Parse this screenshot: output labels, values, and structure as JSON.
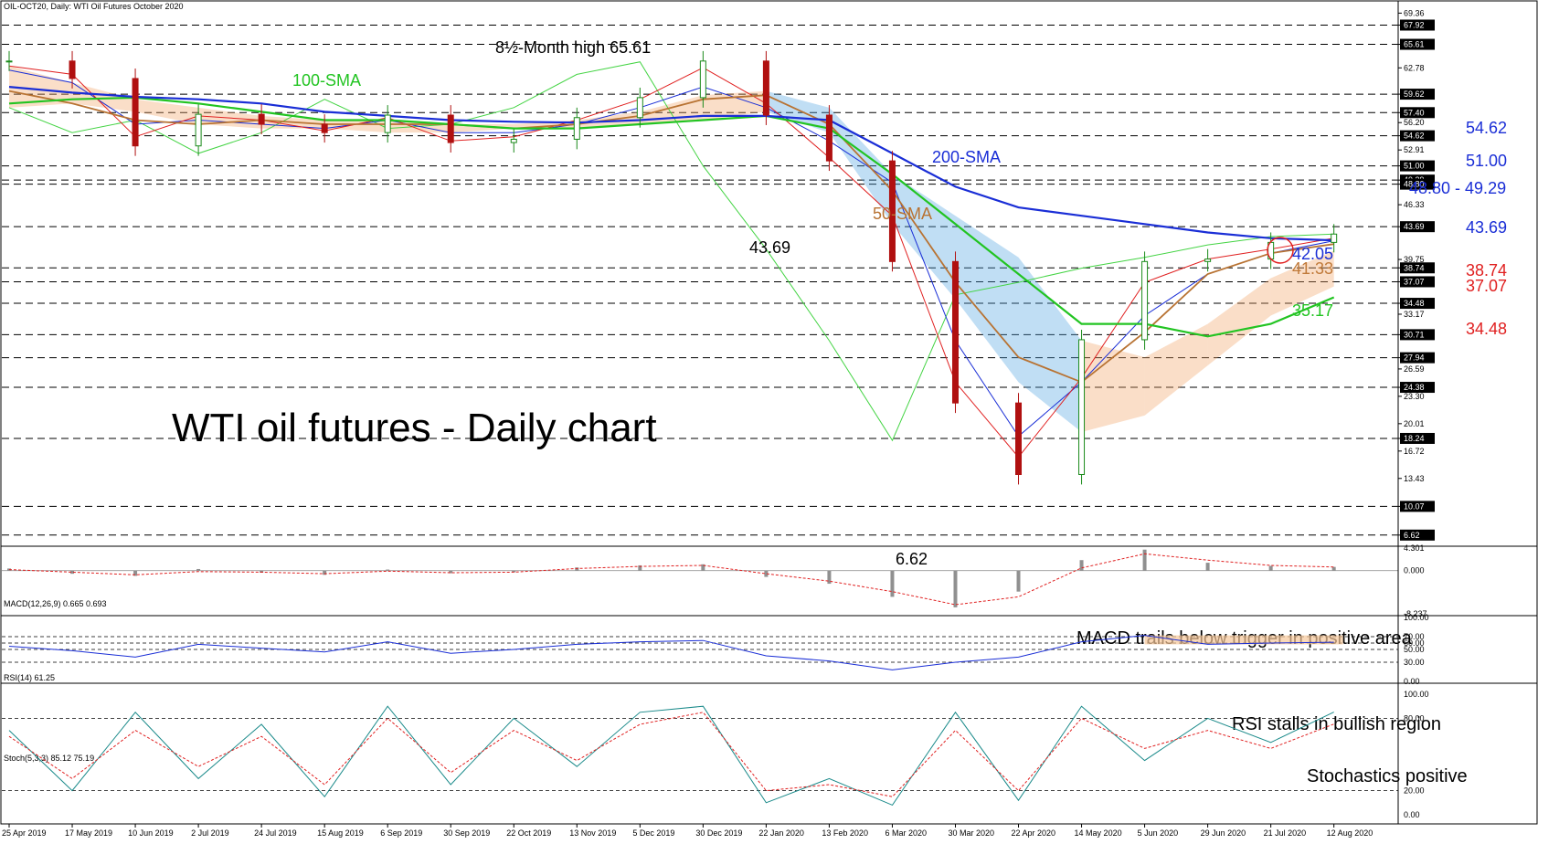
{
  "header": "OIL-OCT20, Daily:  WTI Oil Futures October 2020",
  "chart_data": {
    "type": "line",
    "title": "WTI oil futures - Daily chart",
    "price_axis_labels": [
      "69.36",
      "67.92",
      "65.61",
      "62.78",
      "59.62",
      "57.40",
      "56.20",
      "54.62",
      "52.91",
      "51.00",
      "49.29",
      "48.80",
      "46.33",
      "43.69",
      "39.75",
      "38.74",
      "37.07",
      "34.48",
      "33.17",
      "30.71",
      "27.94",
      "26.59",
      "24.38",
      "23.30",
      "20.01",
      "18.24",
      "16.72",
      "13.43",
      "10.07",
      "6.62"
    ],
    "price_levels": [
      67.92,
      65.61,
      59.62,
      57.4,
      54.62,
      51.0,
      49.29,
      48.8,
      43.69,
      38.74,
      37.07,
      34.48,
      30.71,
      27.94,
      24.38,
      18.24,
      10.07,
      6.62
    ],
    "ylim": [
      5.5,
      69.4
    ],
    "x_labels": [
      "25 Apr 2019",
      "17 May 2019",
      "10 Jun 2019",
      "2 Jul 2019",
      "24 Jul 2019",
      "15 Aug 2019",
      "6 Sep 2019",
      "30 Sep 2019",
      "22 Oct 2019",
      "13 Nov 2019",
      "5 Dec 2019",
      "30 Dec 2019",
      "22 Jan 2020",
      "13 Feb 2020",
      "6 Mar 2020",
      "30 Mar 2020",
      "22 Apr 2020",
      "14 May 2020",
      "5 Jun 2020",
      "29 Jun 2020",
      "21 Jul 2020",
      "12 Aug 2020"
    ],
    "price_series": {
      "x": [
        "25 Apr 2019",
        "17 May 2019",
        "10 Jun 2019",
        "2 Jul 2019",
        "24 Jul 2019",
        "15 Aug 2019",
        "6 Sep 2019",
        "30 Sep 2019",
        "22 Oct 2019",
        "13 Nov 2019",
        "5 Dec 2019",
        "30 Dec 2019",
        "22 Jan 2020",
        "13 Feb 2020",
        "6 Mar 2020",
        "30 Mar 2020",
        "22 Apr 2020",
        "14 May 2020",
        "5 Jun 2020",
        "29 Jun 2020",
        "21 Jul 2020",
        "12 Aug 2020"
      ],
      "close": [
        63.6,
        61.5,
        53.4,
        57.2,
        56.0,
        55.0,
        57.1,
        53.8,
        54.2,
        56.8,
        59.2,
        63.6,
        57.1,
        51.6,
        39.5,
        22.5,
        13.9,
        30.1,
        39.5,
        39.8,
        41.8,
        42.8
      ],
      "tenkan": [
        63.0,
        62.0,
        54.5,
        57.0,
        56.5,
        55.2,
        56.8,
        54.0,
        54.5,
        56.5,
        59.0,
        62.8,
        58.5,
        52.0,
        45.0,
        25.0,
        16.0,
        25.5,
        37.0,
        39.8,
        41.0,
        42.3
      ],
      "kijun": [
        62.5,
        61.0,
        56.0,
        56.5,
        56.0,
        55.5,
        56.5,
        55.0,
        55.0,
        56.0,
        58.0,
        60.5,
        58.0,
        54.0,
        49.0,
        30.0,
        18.5,
        25.0,
        33.0,
        38.0,
        40.5,
        42.0
      ],
      "chikou": [
        58.0,
        55.0,
        56.5,
        52.5,
        55.0,
        59.0,
        55.5,
        56.0,
        58.0,
        62.0,
        63.5,
        51.0,
        41.0,
        30.0,
        18.0,
        35.5,
        37.0,
        38.7,
        40.0,
        41.5,
        42.5,
        42.8
      ],
      "cloud_top": [
        63.0,
        61.0,
        59.0,
        58.0,
        57.0,
        56.5,
        56.5,
        56.0,
        56.0,
        56.5,
        57.5,
        59.5,
        60.0,
        58.0,
        50.0,
        45.0,
        40.0,
        30.0,
        28.0,
        32.0,
        37.5,
        40.8
      ],
      "cloud_bottom": [
        58.0,
        58.5,
        57.5,
        56.0,
        55.5,
        55.5,
        55.0,
        55.0,
        55.5,
        55.5,
        56.0,
        56.5,
        57.5,
        55.0,
        44.0,
        35.0,
        25.0,
        19.0,
        21.0,
        27.0,
        33.0,
        36.5
      ],
      "sma50": [
        60.0,
        58.5,
        56.5,
        56.0,
        56.5,
        56.0,
        56.0,
        56.0,
        55.5,
        56.0,
        57.0,
        59.0,
        59.5,
        56.0,
        48.0,
        37.0,
        28.0,
        25.0,
        31.0,
        38.0,
        40.5,
        41.6
      ],
      "sma100": [
        58.5,
        59.0,
        59.2,
        58.5,
        57.5,
        56.5,
        56.5,
        56.0,
        55.5,
        55.5,
        56.0,
        56.5,
        57.0,
        55.5,
        50.0,
        44.0,
        38.0,
        32.0,
        32.0,
        30.5,
        32.0,
        35.2
      ],
      "sma200": [
        60.5,
        59.8,
        59.3,
        59.0,
        58.5,
        57.5,
        57.0,
        56.5,
        56.3,
        56.2,
        56.5,
        57.0,
        57.0,
        56.5,
        52.5,
        48.5,
        46.0,
        45.0,
        44.0,
        43.0,
        42.3,
        42.05
      ]
    },
    "annotations": {
      "high": "8½-Month high 65.61",
      "low": "6.62",
      "mid_level": "43.69",
      "sma100": "100-SMA",
      "sma200": "200-SMA",
      "sma50": "50-SMA",
      "right_levels": [
        {
          "text": "54.62",
          "color": "#1a2ed6"
        },
        {
          "text": "51.00",
          "color": "#1a2ed6"
        },
        {
          "text": "48.80 - 49.29",
          "color": "#1a2ed6"
        },
        {
          "text": "43.69",
          "color": "#1a2ed6"
        },
        {
          "text": "42.05",
          "color": "#1a2ed6"
        },
        {
          "text": "41.33",
          "color": "#c07a3a"
        },
        {
          "text": "38.74",
          "color": "#e02020"
        },
        {
          "text": "37.07",
          "color": "#e02020"
        },
        {
          "text": "35.17",
          "color": "#22c422"
        },
        {
          "text": "34.48",
          "color": "#e02020"
        }
      ]
    },
    "macd": {
      "header": "MACD(12,26,9) 0.665 0.693",
      "axis_labels": [
        "4.301",
        "0.000",
        "-8.237"
      ],
      "ylim": [
        -8.237,
        4.301
      ],
      "x": [
        "25 Apr 2019",
        "17 May 2019",
        "10 Jun 2019",
        "2 Jul 2019",
        "24 Jul 2019",
        "15 Aug 2019",
        "6 Sep 2019",
        "30 Sep 2019",
        "22 Oct 2019",
        "13 Nov 2019",
        "5 Dec 2019",
        "30 Dec 2019",
        "22 Jan 2020",
        "13 Feb 2020",
        "6 Mar 2020",
        "30 Mar 2020",
        "22 Apr 2020",
        "14 May 2020",
        "5 Jun 2020",
        "29 Jun 2020",
        "21 Jul 2020",
        "12 Aug 2020"
      ],
      "hist": [
        0.4,
        -0.6,
        -1.0,
        0.3,
        -0.4,
        -0.8,
        0.2,
        -0.5,
        -0.3,
        0.6,
        1.0,
        1.2,
        -1.2,
        -2.5,
        -5.0,
        -7.0,
        -4.0,
        2.0,
        4.0,
        1.5,
        0.9,
        0.7
      ],
      "signal": [
        0.2,
        -0.3,
        -0.8,
        -0.2,
        -0.3,
        -0.6,
        -0.1,
        -0.4,
        -0.3,
        0.4,
        0.8,
        1.0,
        -0.6,
        -2.0,
        -4.0,
        -6.5,
        -5.0,
        0.5,
        3.2,
        2.0,
        1.0,
        0.69
      ],
      "annotation": "MACD trails below trigger in positive area"
    },
    "rsi": {
      "header": "RSI(14) 61.25",
      "axis_labels": [
        "100.00",
        "70.00",
        "60.00",
        "50.00",
        "30.00",
        "0.00"
      ],
      "levels": [
        70,
        60,
        50,
        30
      ],
      "ylim": [
        0,
        100
      ],
      "x": [
        "25 Apr 2019",
        "17 May 2019",
        "10 Jun 2019",
        "2 Jul 2019",
        "24 Jul 2019",
        "15 Aug 2019",
        "6 Sep 2019",
        "30 Sep 2019",
        "22 Oct 2019",
        "13 Nov 2019",
        "5 Dec 2019",
        "30 Dec 2019",
        "22 Jan 2020",
        "13 Feb 2020",
        "6 Mar 2020",
        "30 Mar 2020",
        "22 Apr 2020",
        "14 May 2020",
        "5 Jun 2020",
        "29 Jun 2020",
        "21 Jul 2020",
        "12 Aug 2020"
      ],
      "values": [
        55,
        48,
        38,
        58,
        52,
        46,
        62,
        44,
        50,
        58,
        62,
        64,
        40,
        32,
        18,
        30,
        38,
        62,
        72,
        58,
        60,
        61.25
      ],
      "annotation": "RSI stalls in bullish region"
    },
    "stoch": {
      "header": "Stoch(5,3,3) 85.12 75.19",
      "axis_labels": [
        "100.00",
        "80.00",
        "20.00",
        "0.00"
      ],
      "levels": [
        80,
        20
      ],
      "ylim": [
        0,
        100
      ],
      "x": [
        "25 Apr 2019",
        "17 May 2019",
        "10 Jun 2019",
        "2 Jul 2019",
        "24 Jul 2019",
        "15 Aug 2019",
        "6 Sep 2019",
        "30 Sep 2019",
        "22 Oct 2019",
        "13 Nov 2019",
        "5 Dec 2019",
        "30 Dec 2019",
        "22 Jan 2020",
        "13 Feb 2020",
        "6 Mar 2020",
        "30 Mar 2020",
        "22 Apr 2020",
        "14 May 2020",
        "5 Jun 2020",
        "29 Jun 2020",
        "21 Jul 2020",
        "12 Aug 2020"
      ],
      "k": [
        70,
        20,
        85,
        30,
        75,
        15,
        90,
        25,
        80,
        40,
        85,
        90,
        10,
        30,
        8,
        85,
        12,
        90,
        45,
        80,
        60,
        85.12
      ],
      "d": [
        65,
        30,
        70,
        40,
        65,
        25,
        80,
        35,
        70,
        45,
        75,
        85,
        20,
        25,
        15,
        70,
        20,
        80,
        55,
        70,
        55,
        75.19
      ],
      "annotation": "Stochastics positive"
    },
    "colors": {
      "sma50": "#b87333",
      "sma100": "#22c422",
      "sma200": "#1a2ed6",
      "tenkan": "#e02020",
      "kijun": "#1a2ed6",
      "chikou": "#44d444",
      "cloud_bull": "#f0a060",
      "cloud_bear": "#4aa0e0",
      "candle_up": "#1a8a1a",
      "candle_down": "#b01010",
      "resistance_circle": "#e02020"
    }
  }
}
